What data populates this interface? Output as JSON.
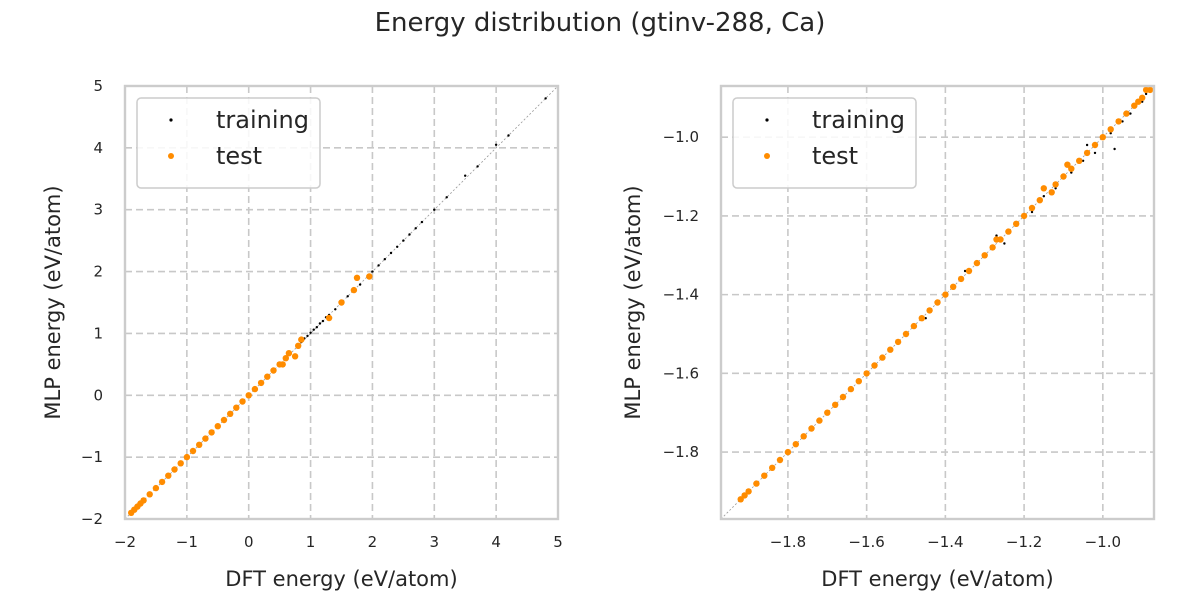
{
  "figure": {
    "title": "Energy distribution (gtinv-288, Ca)"
  },
  "colors": {
    "training": "#000000",
    "test": "#ff8c00",
    "grid": "#c8c8c8",
    "frame": "#cccccc",
    "diagonal": "#999999"
  },
  "chart_data": [
    {
      "type": "scatter",
      "xlabel": "DFT energy (eV/atom)",
      "ylabel": "MLP energy (eV/atom)",
      "xlim": [
        -2,
        5
      ],
      "ylim": [
        -2,
        5
      ],
      "xticks": [
        -2,
        -1,
        0,
        1,
        2,
        3,
        4,
        5
      ],
      "yticks": [
        -2,
        -1,
        0,
        1,
        2,
        3,
        4,
        5
      ],
      "xtick_labels": [
        "−2",
        "−1",
        "0",
        "1",
        "2",
        "3",
        "4",
        "5"
      ],
      "ytick_labels": [
        "−2",
        "−1",
        "0",
        "1",
        "2",
        "3",
        "4",
        "5"
      ],
      "grid": true,
      "diagonal": true,
      "legend_position": "top-left",
      "series": [
        {
          "name": "training",
          "marker": "small",
          "points": [
            [
              -1.9,
              -1.9
            ],
            [
              -1.6,
              -1.6
            ],
            [
              -1.2,
              -1.2
            ],
            [
              -0.8,
              -0.8
            ],
            [
              -0.4,
              -0.4
            ],
            [
              0.0,
              0.0
            ],
            [
              0.3,
              0.3
            ],
            [
              0.6,
              0.6
            ],
            [
              0.8,
              0.82
            ],
            [
              0.85,
              0.86
            ],
            [
              0.9,
              0.92
            ],
            [
              0.95,
              0.96
            ],
            [
              1.0,
              1.01
            ],
            [
              1.05,
              1.06
            ],
            [
              1.1,
              1.1
            ],
            [
              1.15,
              1.16
            ],
            [
              1.2,
              1.2
            ],
            [
              1.25,
              1.26
            ],
            [
              1.3,
              1.3
            ],
            [
              1.4,
              1.39
            ],
            [
              1.5,
              1.5
            ],
            [
              1.6,
              1.6
            ],
            [
              1.8,
              1.79
            ],
            [
              2.0,
              2.0
            ],
            [
              2.1,
              2.1
            ],
            [
              2.2,
              2.2
            ],
            [
              2.3,
              2.3
            ],
            [
              2.4,
              2.4
            ],
            [
              2.5,
              2.5
            ],
            [
              2.6,
              2.6
            ],
            [
              2.7,
              2.7
            ],
            [
              2.8,
              2.8
            ],
            [
              3.0,
              3.0
            ],
            [
              3.2,
              3.2
            ],
            [
              3.5,
              3.55
            ],
            [
              3.7,
              3.7
            ],
            [
              4.0,
              4.05
            ],
            [
              4.2,
              4.2
            ],
            [
              4.8,
              4.8
            ]
          ]
        },
        {
          "name": "test",
          "marker": "large",
          "points": [
            [
              -1.9,
              -1.9
            ],
            [
              -1.85,
              -1.85
            ],
            [
              -1.8,
              -1.8
            ],
            [
              -1.75,
              -1.75
            ],
            [
              -1.7,
              -1.7
            ],
            [
              -1.6,
              -1.6
            ],
            [
              -1.5,
              -1.5
            ],
            [
              -1.4,
              -1.4
            ],
            [
              -1.3,
              -1.3
            ],
            [
              -1.2,
              -1.2
            ],
            [
              -1.1,
              -1.1
            ],
            [
              -1.0,
              -1.0
            ],
            [
              -0.9,
              -0.9
            ],
            [
              -0.8,
              -0.8
            ],
            [
              -0.7,
              -0.7
            ],
            [
              -0.6,
              -0.6
            ],
            [
              -0.5,
              -0.5
            ],
            [
              -0.4,
              -0.4
            ],
            [
              -0.3,
              -0.3
            ],
            [
              -0.2,
              -0.2
            ],
            [
              -0.1,
              -0.1
            ],
            [
              0.0,
              0.0
            ],
            [
              0.1,
              0.1
            ],
            [
              0.2,
              0.2
            ],
            [
              0.3,
              0.3
            ],
            [
              0.4,
              0.4
            ],
            [
              0.5,
              0.5
            ],
            [
              0.55,
              0.5
            ],
            [
              0.6,
              0.6
            ],
            [
              0.65,
              0.68
            ],
            [
              0.75,
              0.63
            ],
            [
              0.8,
              0.8
            ],
            [
              0.85,
              0.9
            ],
            [
              1.3,
              1.25
            ],
            [
              1.5,
              1.5
            ],
            [
              1.7,
              1.7
            ],
            [
              1.75,
              1.9
            ],
            [
              1.95,
              1.92
            ]
          ]
        }
      ]
    },
    {
      "type": "scatter",
      "xlabel": "DFT energy (eV/atom)",
      "ylabel": "MLP energy (eV/atom)",
      "xlim": [
        -1.97,
        -0.87
      ],
      "ylim": [
        -1.97,
        -0.87
      ],
      "xticks": [
        -1.8,
        -1.6,
        -1.4,
        -1.2,
        -1.0
      ],
      "yticks": [
        -1.8,
        -1.6,
        -1.4,
        -1.2,
        -1.0
      ],
      "xtick_labels": [
        "−1.8",
        "−1.6",
        "−1.4",
        "−1.2",
        "−1.0"
      ],
      "ytick_labels": [
        "−1.8",
        "−1.6",
        "−1.4",
        "−1.2",
        "−1.0"
      ],
      "grid": true,
      "diagonal": true,
      "legend_position": "top-left",
      "series": [
        {
          "name": "training",
          "marker": "small",
          "points": [
            [
              -1.91,
              -1.91
            ],
            [
              -1.8,
              -1.8
            ],
            [
              -1.7,
              -1.7
            ],
            [
              -1.6,
              -1.6
            ],
            [
              -1.5,
              -1.5
            ],
            [
              -1.45,
              -1.46
            ],
            [
              -1.4,
              -1.4
            ],
            [
              -1.35,
              -1.34
            ],
            [
              -1.3,
              -1.3
            ],
            [
              -1.27,
              -1.25
            ],
            [
              -1.25,
              -1.27
            ],
            [
              -1.22,
              -1.22
            ],
            [
              -1.2,
              -1.2
            ],
            [
              -1.18,
              -1.19
            ],
            [
              -1.15,
              -1.15
            ],
            [
              -1.12,
              -1.13
            ],
            [
              -1.1,
              -1.1
            ],
            [
              -1.08,
              -1.09
            ],
            [
              -1.05,
              -1.06
            ],
            [
              -1.04,
              -1.02
            ],
            [
              -1.02,
              -1.04
            ],
            [
              -1.0,
              -1.0
            ],
            [
              -0.98,
              -0.99
            ],
            [
              -0.97,
              -1.03
            ],
            [
              -0.95,
              -0.96
            ],
            [
              -0.93,
              -0.94
            ],
            [
              -0.92,
              -0.92
            ],
            [
              -0.9,
              -0.91
            ],
            [
              -0.89,
              -0.89
            ],
            [
              -0.88,
              -0.88
            ]
          ]
        },
        {
          "name": "test",
          "marker": "large",
          "points": [
            [
              -1.92,
              -1.92
            ],
            [
              -1.91,
              -1.91
            ],
            [
              -1.9,
              -1.9
            ],
            [
              -1.88,
              -1.88
            ],
            [
              -1.86,
              -1.86
            ],
            [
              -1.84,
              -1.84
            ],
            [
              -1.82,
              -1.82
            ],
            [
              -1.8,
              -1.8
            ],
            [
              -1.78,
              -1.78
            ],
            [
              -1.76,
              -1.76
            ],
            [
              -1.74,
              -1.74
            ],
            [
              -1.72,
              -1.72
            ],
            [
              -1.7,
              -1.7
            ],
            [
              -1.68,
              -1.68
            ],
            [
              -1.66,
              -1.66
            ],
            [
              -1.64,
              -1.64
            ],
            [
              -1.62,
              -1.62
            ],
            [
              -1.6,
              -1.6
            ],
            [
              -1.58,
              -1.58
            ],
            [
              -1.56,
              -1.56
            ],
            [
              -1.54,
              -1.54
            ],
            [
              -1.52,
              -1.52
            ],
            [
              -1.5,
              -1.5
            ],
            [
              -1.48,
              -1.48
            ],
            [
              -1.46,
              -1.46
            ],
            [
              -1.44,
              -1.44
            ],
            [
              -1.42,
              -1.42
            ],
            [
              -1.4,
              -1.4
            ],
            [
              -1.38,
              -1.38
            ],
            [
              -1.36,
              -1.36
            ],
            [
              -1.34,
              -1.34
            ],
            [
              -1.32,
              -1.32
            ],
            [
              -1.3,
              -1.3
            ],
            [
              -1.28,
              -1.28
            ],
            [
              -1.27,
              -1.26
            ],
            [
              -1.26,
              -1.26
            ],
            [
              -1.24,
              -1.24
            ],
            [
              -1.22,
              -1.22
            ],
            [
              -1.2,
              -1.2
            ],
            [
              -1.18,
              -1.18
            ],
            [
              -1.16,
              -1.16
            ],
            [
              -1.15,
              -1.13
            ],
            [
              -1.13,
              -1.14
            ],
            [
              -1.12,
              -1.12
            ],
            [
              -1.1,
              -1.1
            ],
            [
              -1.09,
              -1.07
            ],
            [
              -1.08,
              -1.08
            ],
            [
              -1.06,
              -1.06
            ],
            [
              -1.04,
              -1.04
            ],
            [
              -1.02,
              -1.02
            ],
            [
              -1.0,
              -1.0
            ],
            [
              -0.98,
              -0.98
            ],
            [
              -0.96,
              -0.96
            ],
            [
              -0.94,
              -0.94
            ],
            [
              -0.92,
              -0.92
            ],
            [
              -0.91,
              -0.91
            ],
            [
              -0.9,
              -0.9
            ],
            [
              -0.89,
              -0.88
            ],
            [
              -0.88,
              -0.88
            ]
          ]
        }
      ]
    }
  ]
}
